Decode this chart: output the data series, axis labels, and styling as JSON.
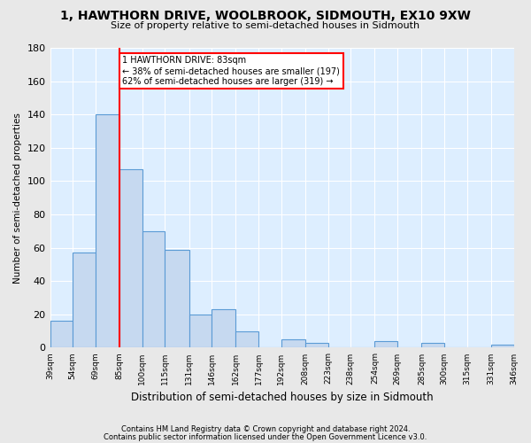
{
  "title": "1, HAWTHORN DRIVE, WOOLBROOK, SIDMOUTH, EX10 9XW",
  "subtitle": "Size of property relative to semi-detached houses in Sidmouth",
  "xlabel": "Distribution of semi-detached houses by size in Sidmouth",
  "ylabel": "Number of semi-detached properties",
  "bar_color": "#c6d9f0",
  "bar_edge_color": "#5b9bd5",
  "background_color": "#ddeeff",
  "grid_color": "#ffffff",
  "property_line_x": 85,
  "property_label": "1 HAWTHORN DRIVE: 83sqm",
  "annotation_line1": "← 38% of semi-detached houses are smaller (197)",
  "annotation_line2": "62% of semi-detached houses are larger (319) →",
  "categories": [
    "39sqm",
    "54sqm",
    "69sqm",
    "85sqm",
    "100sqm",
    "115sqm",
    "131sqm",
    "146sqm",
    "162sqm",
    "177sqm",
    "192sqm",
    "208sqm",
    "223sqm",
    "238sqm",
    "254sqm",
    "269sqm",
    "285sqm",
    "300sqm",
    "315sqm",
    "331sqm",
    "346sqm"
  ],
  "bin_edges": [
    39,
    54,
    69,
    85,
    100,
    115,
    131,
    146,
    162,
    177,
    192,
    208,
    223,
    238,
    254,
    269,
    285,
    300,
    315,
    331,
    346
  ],
  "values": [
    16,
    57,
    140,
    107,
    70,
    59,
    20,
    23,
    10,
    0,
    5,
    3,
    0,
    0,
    4,
    0,
    3,
    0,
    0,
    2
  ],
  "ylim": [
    0,
    180
  ],
  "yticks": [
    0,
    20,
    40,
    60,
    80,
    100,
    120,
    140,
    160,
    180
  ],
  "footnote1": "Contains HM Land Registry data © Crown copyright and database right 2024.",
  "footnote2": "Contains public sector information licensed under the Open Government Licence v3.0."
}
